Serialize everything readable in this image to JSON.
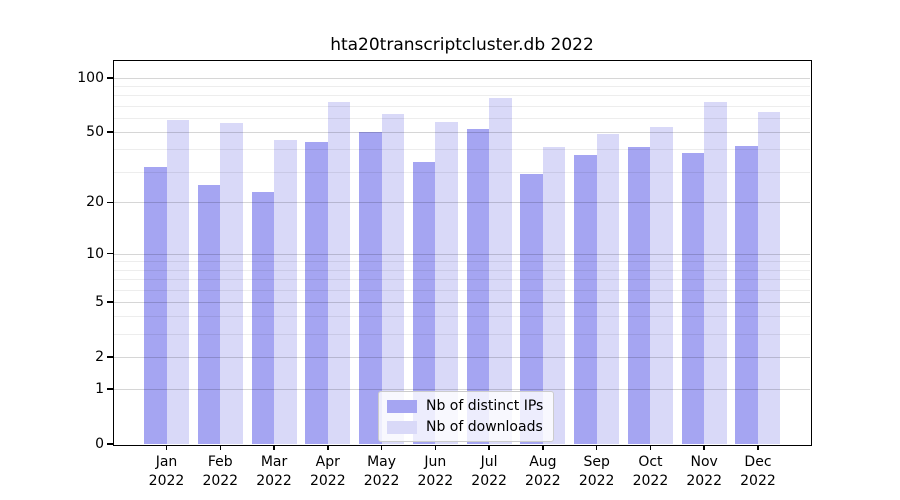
{
  "figure": {
    "title": "hta20transcriptcluster.db 2022",
    "background": "#ffffff"
  },
  "colors": {
    "ips_bar": "#a5a5f2",
    "downloads_bar": "#d9d9f8",
    "grid_major": "rgba(0,0,0,0.16)",
    "grid_minor": "rgba(0,0,0,0.07)",
    "frame": "#000000"
  },
  "y_axis": {
    "scale": "log1p",
    "major_ticks": [
      0,
      1,
      2,
      5,
      10,
      20,
      50,
      100
    ],
    "minor_ticks": [
      3,
      4,
      6,
      7,
      8,
      9,
      30,
      40,
      60,
      70,
      80,
      90
    ],
    "max": 125
  },
  "x_axis": {
    "months": [
      "Jan",
      "Feb",
      "Mar",
      "Apr",
      "May",
      "Jun",
      "Jul",
      "Aug",
      "Sep",
      "Oct",
      "Nov",
      "Dec"
    ],
    "year": "2022"
  },
  "legend": {
    "items": [
      {
        "label": "Nb of distinct IPs",
        "color": "#a5a5f2"
      },
      {
        "label": "Nb of downloads",
        "color": "#d9d9f8"
      }
    ]
  },
  "chart_data": {
    "type": "bar",
    "title": "hta20transcriptcluster.db 2022",
    "categories": [
      "Jan 2022",
      "Feb 2022",
      "Mar 2022",
      "Apr 2022",
      "May 2022",
      "Jun 2022",
      "Jul 2022",
      "Aug 2022",
      "Sep 2022",
      "Oct 2022",
      "Nov 2022",
      "Dec 2022"
    ],
    "series": [
      {
        "name": "Nb of distinct IPs",
        "color": "#a5a5f2",
        "values": [
          32,
          25,
          23,
          44,
          50,
          34,
          52,
          29,
          37,
          41,
          38,
          42
        ]
      },
      {
        "name": "Nb of downloads",
        "color": "#d9d9f8",
        "values": [
          58,
          56,
          45,
          73,
          63,
          57,
          77,
          41,
          49,
          53,
          73,
          65
        ]
      }
    ],
    "xlabel": "",
    "ylabel": "",
    "yscale": "log1p",
    "y_ticks": [
      0,
      1,
      2,
      5,
      10,
      20,
      50,
      100
    ],
    "ylim": [
      0,
      125
    ],
    "grid": "horizontal major and minor gridlines",
    "legend_position": "bottom-center-inside"
  }
}
